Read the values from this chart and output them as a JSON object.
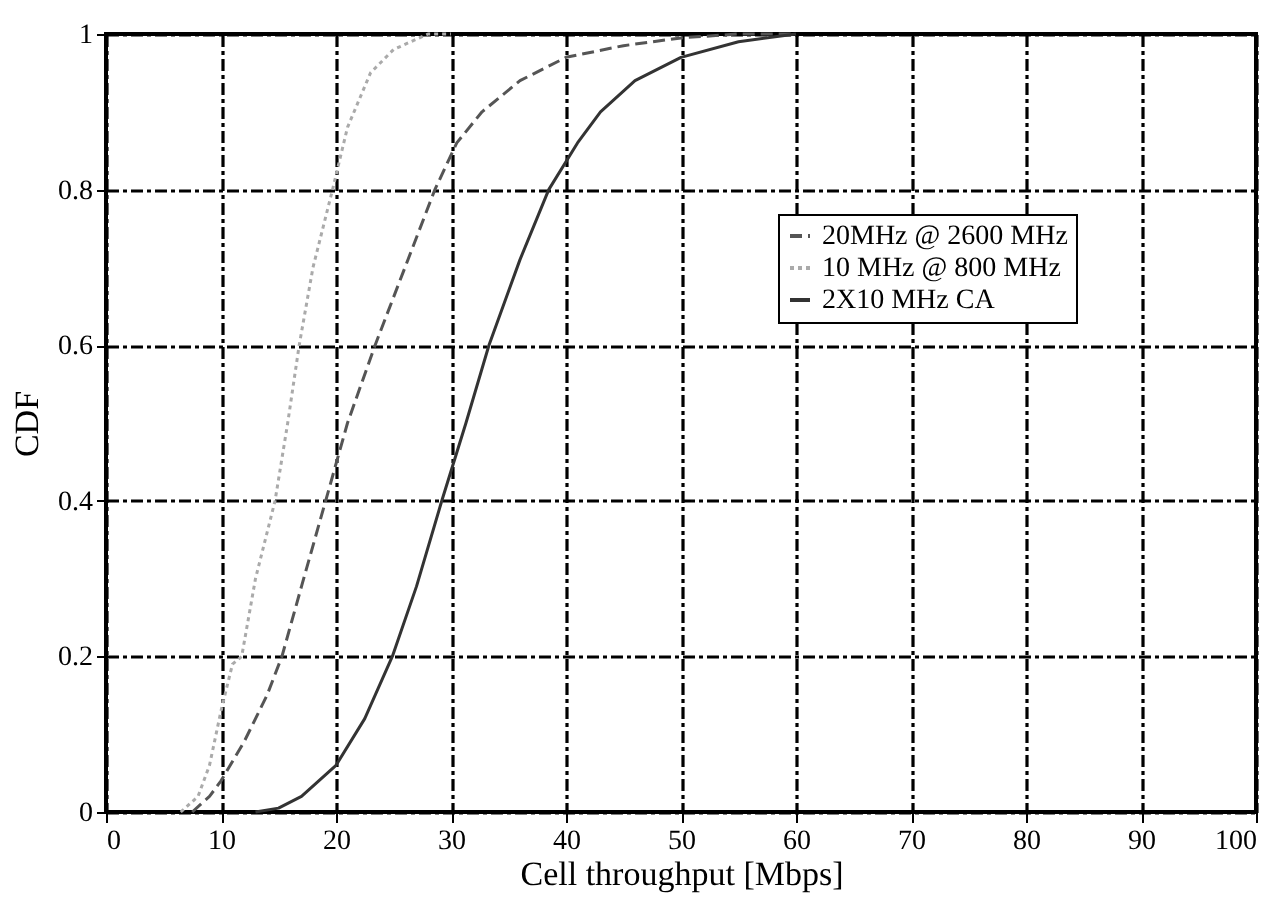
{
  "chart_data": {
    "type": "line",
    "xlabel": "Cell throughput [Mbps]",
    "ylabel": "CDF",
    "xlim": [
      0,
      100
    ],
    "ylim": [
      0,
      1
    ],
    "xticks": [
      0,
      10,
      20,
      30,
      40,
      50,
      60,
      70,
      80,
      90,
      100
    ],
    "yticks": [
      0,
      0.2,
      0.4,
      0.6,
      0.8,
      1
    ],
    "grid": true,
    "legend": "top right",
    "series": [
      {
        "name": "20MHz @ 2600 MHz",
        "color": "#555555",
        "line_style": "dashed",
        "x": [
          7.5,
          9,
          10,
          12,
          14,
          15.3,
          17,
          19.1,
          21,
          23.4,
          26,
          28.6,
          30.5,
          32.7,
          36,
          40,
          45,
          50,
          55,
          60
        ],
        "values": [
          0,
          0.02,
          0.04,
          0.09,
          0.15,
          0.2,
          0.29,
          0.4,
          0.5,
          0.6,
          0.7,
          0.8,
          0.86,
          0.9,
          0.94,
          0.97,
          0.985,
          0.995,
          1,
          1
        ]
      },
      {
        "name": "10 MHz @ 800 MHz",
        "color": "#aaaaaa",
        "line_style": "dotted",
        "x": [
          6.5,
          8,
          9,
          10,
          11,
          11.8,
          13,
          14.7,
          15.8,
          16.8,
          18,
          19.7,
          21,
          23,
          25,
          28,
          30
        ],
        "values": [
          0,
          0.02,
          0.06,
          0.13,
          0.19,
          0.2,
          0.3,
          0.4,
          0.5,
          0.6,
          0.7,
          0.8,
          0.88,
          0.95,
          0.98,
          1,
          1
        ]
      },
      {
        "name": "2X10 MHz CA",
        "color": "#333333",
        "line_style": "solid",
        "x": [
          13,
          15,
          17,
          20,
          22.5,
          24.9,
          27,
          29.2,
          31.3,
          33.3,
          36,
          38.5,
          41,
          43,
          46,
          50,
          55,
          60
        ],
        "values": [
          0,
          0.005,
          0.02,
          0.06,
          0.12,
          0.2,
          0.29,
          0.4,
          0.5,
          0.6,
          0.71,
          0.8,
          0.86,
          0.9,
          0.94,
          0.97,
          0.99,
          1
        ]
      }
    ]
  }
}
